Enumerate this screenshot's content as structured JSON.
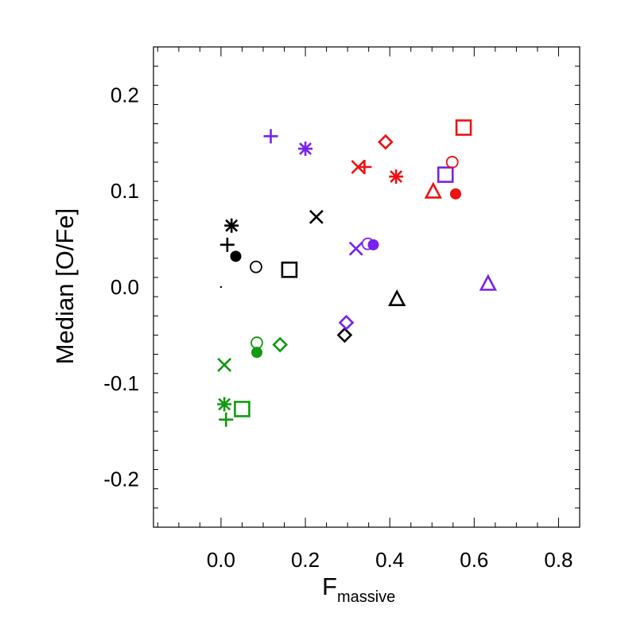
{
  "chart_data": {
    "type": "scatter",
    "title": "",
    "xlabel": "F",
    "xlabel_subscript": "massive",
    "ylabel": "Median [O/Fe]",
    "xlim": [
      -0.16,
      0.85
    ],
    "ylim": [
      -0.25,
      0.25
    ],
    "xticks": [
      0.0,
      0.2,
      0.4,
      0.6,
      0.8
    ],
    "yticks": [
      -0.2,
      -0.1,
      0.0,
      0.1,
      0.2
    ],
    "xtick_labels": [
      "0.0",
      "0.2",
      "0.4",
      "0.6",
      "0.8"
    ],
    "ytick_labels": [
      "-0.2",
      "-0.1",
      "0.0",
      "0.1",
      "0.2"
    ],
    "grid": false,
    "legend": "none",
    "colors": {
      "black": "#000000",
      "red": "#ee1111",
      "purple": "#7722ee",
      "green": "#119911"
    },
    "points": [
      {
        "x": 0.0,
        "y": 0.0,
        "color": "black",
        "marker": "dot"
      },
      {
        "x": 0.015,
        "y": 0.044,
        "color": "black",
        "marker": "plus"
      },
      {
        "x": 0.035,
        "y": 0.032,
        "color": "black",
        "marker": "filled-circle"
      },
      {
        "x": 0.025,
        "y": 0.064,
        "color": "black",
        "marker": "asterisk"
      },
      {
        "x": 0.083,
        "y": 0.021,
        "color": "black",
        "marker": "open-circle"
      },
      {
        "x": 0.162,
        "y": 0.018,
        "color": "black",
        "marker": "square"
      },
      {
        "x": 0.226,
        "y": 0.073,
        "color": "black",
        "marker": "x"
      },
      {
        "x": 0.293,
        "y": -0.05,
        "color": "black",
        "marker": "diamond"
      },
      {
        "x": 0.417,
        "y": -0.013,
        "color": "black",
        "marker": "triangle"
      },
      {
        "x": 0.118,
        "y": 0.157,
        "color": "purple",
        "marker": "plus"
      },
      {
        "x": 0.2,
        "y": 0.144,
        "color": "purple",
        "marker": "asterisk"
      },
      {
        "x": 0.297,
        "y": -0.037,
        "color": "purple",
        "marker": "diamond"
      },
      {
        "x": 0.32,
        "y": 0.04,
        "color": "purple",
        "marker": "x"
      },
      {
        "x": 0.348,
        "y": 0.045,
        "color": "purple",
        "marker": "open-circle"
      },
      {
        "x": 0.361,
        "y": 0.044,
        "color": "purple",
        "marker": "filled-circle"
      },
      {
        "x": 0.532,
        "y": 0.117,
        "color": "purple",
        "marker": "square"
      },
      {
        "x": 0.633,
        "y": 0.003,
        "color": "purple",
        "marker": "triangle"
      },
      {
        "x": 0.325,
        "y": 0.125,
        "color": "red",
        "marker": "x"
      },
      {
        "x": 0.34,
        "y": 0.125,
        "color": "red",
        "marker": "plus"
      },
      {
        "x": 0.39,
        "y": 0.151,
        "color": "red",
        "marker": "diamond"
      },
      {
        "x": 0.415,
        "y": 0.115,
        "color": "red",
        "marker": "asterisk"
      },
      {
        "x": 0.503,
        "y": 0.099,
        "color": "red",
        "marker": "triangle"
      },
      {
        "x": 0.548,
        "y": 0.13,
        "color": "red",
        "marker": "open-circle"
      },
      {
        "x": 0.556,
        "y": 0.097,
        "color": "red",
        "marker": "filled-circle"
      },
      {
        "x": 0.575,
        "y": 0.166,
        "color": "red",
        "marker": "square"
      },
      {
        "x": 0.008,
        "y": -0.081,
        "color": "green",
        "marker": "x"
      },
      {
        "x": 0.008,
        "y": -0.122,
        "color": "green",
        "marker": "asterisk"
      },
      {
        "x": 0.012,
        "y": -0.138,
        "color": "green",
        "marker": "plus"
      },
      {
        "x": 0.05,
        "y": -0.127,
        "color": "green",
        "marker": "square"
      },
      {
        "x": 0.085,
        "y": -0.058,
        "color": "green",
        "marker": "open-circle"
      },
      {
        "x": 0.085,
        "y": -0.068,
        "color": "green",
        "marker": "filled-circle"
      },
      {
        "x": 0.14,
        "y": -0.06,
        "color": "green",
        "marker": "diamond"
      }
    ]
  }
}
